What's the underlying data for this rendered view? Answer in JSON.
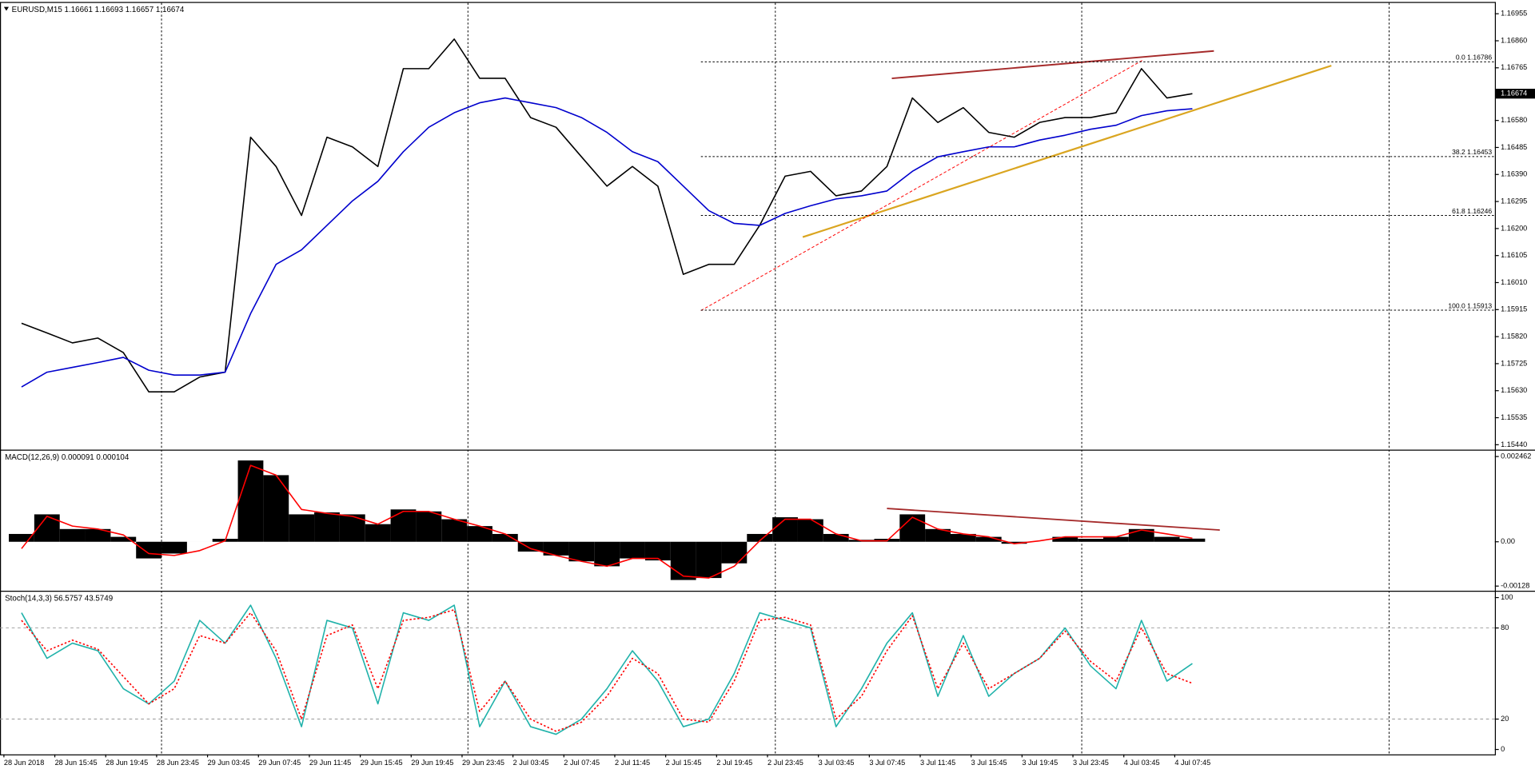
{
  "chart_data": [
    {
      "type": "line",
      "title": "EURUSD,M15  1.16661 1.16693 1.16657 1.16674",
      "categories": [
        "28 Jun 2018",
        null,
        "28 Jun 15:45",
        null,
        "28 Jun 19:45",
        null,
        "28 Jun 23:45",
        null,
        "29 Jun 03:45",
        null,
        "29 Jun 07:45",
        null,
        "29 Jun 11:45",
        null,
        "29 Jun 15:45",
        null,
        "29 Jun 19:45",
        null,
        "29 Jun 23:45",
        null,
        "2 Jul 03:45",
        null,
        "2 Jul 07:45",
        null,
        "2 Jul 11:45",
        null,
        "2 Jul 15:45",
        null,
        "2 Jul 19:45",
        null,
        "2 Jul 23:45",
        null,
        "3 Jul 03:45",
        null,
        "3 Jul 07:45",
        null,
        "3 Jul 11:45",
        null,
        "3 Jul 15:45",
        null,
        "3 Jul 19:45",
        null,
        "3 Jul 23:45",
        null,
        "4 Jul 03:45",
        null,
        "4 Jul 07:45"
      ],
      "series": [
        {
          "color": "#000000",
          "values": [
            1.15867,
            1.15833,
            1.15798,
            1.15815,
            1.15764,
            1.15626,
            1.15626,
            1.15678,
            1.15695,
            1.16521,
            1.16418,
            1.16246,
            1.16521,
            1.16487,
            1.16418,
            1.16762,
            1.16762,
            1.16866,
            1.16728,
            1.16728,
            1.1659,
            1.16556,
            1.16452,
            1.16349,
            1.16418,
            1.16349,
            1.16039,
            1.16074,
            1.16074,
            1.16211,
            1.16384,
            1.16401,
            1.16315,
            1.16332,
            1.16418,
            1.16659,
            1.16573,
            1.16625,
            1.16538,
            1.16521,
            1.16573,
            1.1659,
            1.1659,
            1.16607,
            1.16762,
            1.16659,
            1.16674
          ]
        },
        {
          "color": "#0000cd",
          "values": [
            1.15643,
            1.15695,
            1.15712,
            1.15729,
            1.15747,
            1.15702,
            1.15685,
            1.15685,
            1.15695,
            1.15901,
            1.16074,
            1.16125,
            1.16211,
            1.16297,
            1.16366,
            1.1647,
            1.16556,
            1.16607,
            1.16642,
            1.16659,
            1.16642,
            1.16625,
            1.1659,
            1.16538,
            1.1647,
            1.16435,
            1.16349,
            1.16263,
            1.16218,
            1.16211,
            1.16253,
            1.1628,
            1.16304,
            1.16315,
            1.16332,
            1.16401,
            1.16452,
            1.1647,
            1.16487,
            1.16487,
            1.16511,
            1.16528,
            1.16549,
            1.16563,
            1.16597,
            1.16614,
            1.16621
          ]
        }
      ],
      "ylim": [
        1.15426,
        1.16993
      ],
      "yticks": [
        1.16955,
        {
          "value": 1.1686,
          "label": "1.16860"
        },
        1.16765,
        {
          "value": 1.1658,
          "label": "1.16580"
        },
        1.16485,
        {
          "value": 1.1639,
          "label": "1.16390"
        },
        1.16295,
        {
          "value": 1.162,
          "label": "1.16200"
        },
        1.16105,
        {
          "value": 1.1601,
          "label": "1.16010"
        },
        1.15915,
        {
          "value": 1.1582,
          "label": "1.15820"
        },
        1.15725,
        {
          "value": 1.1563,
          "label": "1.15630"
        },
        1.15535,
        {
          "value": 1.1544,
          "label": "1.15440"
        }
      ],
      "current_price": 1.16674,
      "fib_levels": [
        {
          "label": "0.0 1.16786",
          "value": 1.16786
        },
        {
          "label": "38.2 1.16453",
          "value": 1.16453
        },
        {
          "label": "61.8 1.16246",
          "value": 1.16246
        },
        {
          "label": "100.0 1.15913",
          "value": 1.15913
        }
      ]
    },
    {
      "type": "combo",
      "title": "MACD(12,26,9) 0.000091 0.000104",
      "series": [
        {
          "type": "bar",
          "color": "#000000",
          "values": [
            0.000226,
            0.000792,
            0.000368,
            0.000368,
            0.000142,
            -0.000481,
            -0.00034,
            0,
            8.5e-05,
            0.002349,
            0.001924,
            0.000792,
            0.000849,
            0.000792,
            0.000509,
            0.000934,
            0.000877,
            0.000651,
            0.000453,
            0.000226,
            -0.000283,
            -0.000396,
            -0.000566,
            -0.000708,
            -0.000481,
            -0.000538,
            -0.001104,
            -0.001047,
            -0.000623,
            0.000226,
            0.000708,
            0.000651,
            0.000226,
            5.7e-05,
            8.5e-05,
            0.000792,
            0.000368,
            0.000226,
            0.000142,
            -5.7e-05,
            0,
            0.000142,
            8.5e-05,
            0.000142,
            0.000368,
            0.000142,
            9.1e-05
          ]
        },
        {
          "type": "line",
          "color": "#ff0000",
          "values": [
            -0.000198,
            0.000736,
            0.000453,
            0.000368,
            0.000198,
            -0.00034,
            -0.000396,
            -0.000255,
            2.8e-05,
            0.002207,
            0.001924,
            0.000934,
            0.000821,
            0.000736,
            0.000509,
            0.000877,
            0.000877,
            0.000651,
            0.000453,
            0.000226,
            -0.000198,
            -0.000396,
            -0.000566,
            -0.000708,
            -0.000481,
            -0.000481,
            -0.000991,
            -0.001047,
            -0.000708,
            2.8e-05,
            0.000651,
            0.000651,
            0.000226,
            2.8e-05,
            2.8e-05,
            0.000708,
            0.000368,
            0.000226,
            0.000142,
            -5.7e-05,
            2.8e-05,
            0.000142,
            0.000142,
            0.000142,
            0.00034,
            0.000226,
            0.000104
          ]
        }
      ],
      "ylim": [
        -0.001387,
        0.002603
      ],
      "yticks": [
        0.002462,
        {
          "value": 0,
          "label": "0.00"
        },
        -0.00128
      ]
    },
    {
      "type": "line",
      "title": "Stoch(14,3,3) 56.5757 43.5749",
      "series": [
        {
          "color": "#20b2aa",
          "values": [
            90,
            60,
            70,
            65,
            40,
            30,
            45,
            85,
            70,
            95,
            60,
            15,
            85,
            80,
            30,
            90,
            85,
            95,
            15,
            45,
            15,
            10,
            20,
            40,
            65,
            45,
            15,
            20,
            50,
            90,
            85,
            80,
            15,
            40,
            70,
            90,
            35,
            75,
            35,
            50,
            60,
            80,
            55,
            40,
            85,
            45,
            56.5757
          ]
        },
        {
          "color": "#ff0000",
          "dash": true,
          "values": [
            85,
            65,
            72,
            66,
            48,
            30,
            40,
            75,
            70,
            90,
            65,
            20,
            75,
            82,
            40,
            85,
            87,
            92,
            25,
            45,
            20,
            12,
            18,
            35,
            60,
            50,
            20,
            18,
            45,
            85,
            87,
            82,
            20,
            35,
            65,
            88,
            40,
            70,
            40,
            50,
            60,
            78,
            58,
            45,
            80,
            50,
            43.5749
          ]
        }
      ],
      "ylim": [
        -2.6,
        103.2
      ],
      "yticks": [
        100,
        80,
        20,
        0
      ],
      "grid_levels": [
        80,
        20
      ]
    }
  ]
}
